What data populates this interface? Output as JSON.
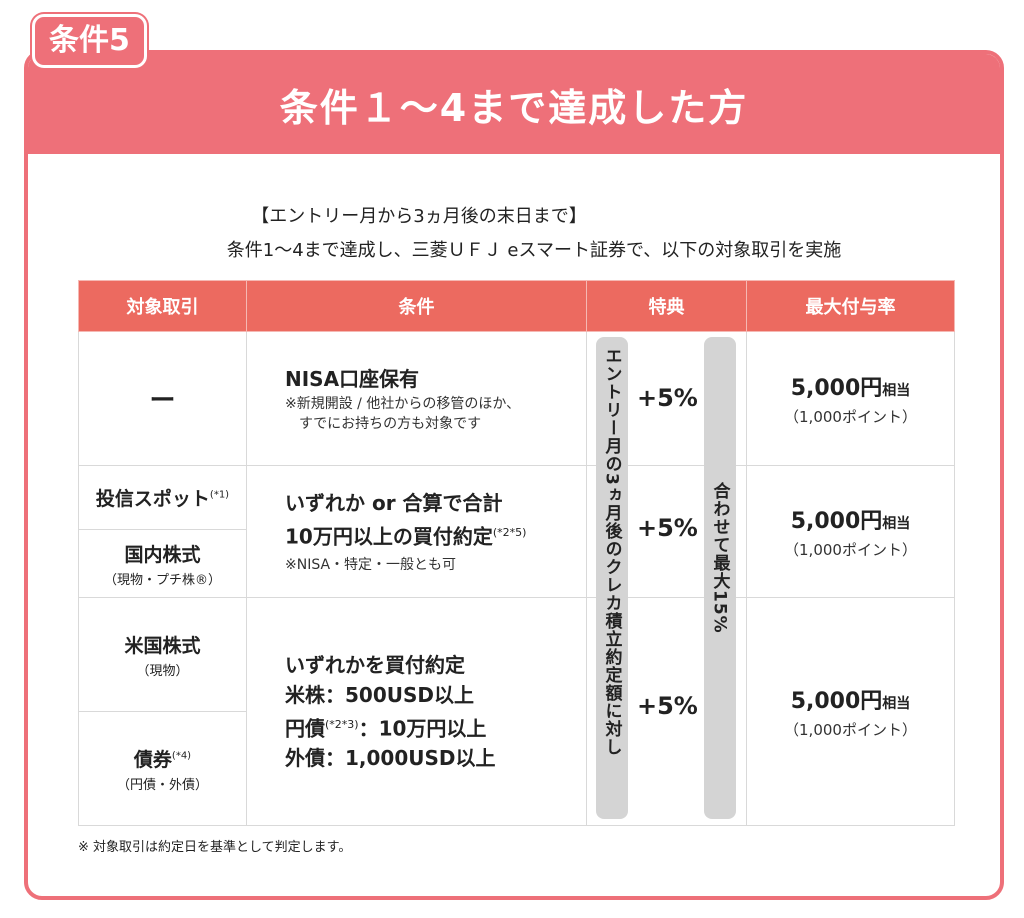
{
  "tab_label": "条件5",
  "title": "条件１〜4まで達成した方",
  "intro": {
    "period": "【エントリー月から3ヵ月後の末日まで】",
    "description": "条件1〜4まで達成し、三菱ＵＦＪ eスマート証券で、以下の対象取引を実施"
  },
  "table": {
    "headers": [
      "対象取引",
      "条件",
      "特典",
      "最大付与率"
    ],
    "rows": [
      {
        "target": "ー",
        "condition_main": "NISA口座保有",
        "condition_note1": "※新規開設 / 他社からの移管のほか、",
        "condition_note2": "すでにお持ちの方も対象です",
        "benefit": "+5%",
        "amount": "5,000円",
        "amount_unit": "相当",
        "points": "（1,000ポイント）"
      },
      {
        "target1": "投信スポット",
        "target1_sup": "(*1)",
        "target2": "国内株式",
        "target2_sub": "（現物・プチ株®）",
        "condition_line1": "いずれか or 合算で合計",
        "condition_line2": "10万円以上の買付約定",
        "condition_sup": "(*2*5)",
        "condition_note": "※NISA・特定・一般とも可",
        "benefit": "+5%",
        "amount": "5,000円",
        "amount_unit": "相当",
        "points": "（1,000ポイント）"
      },
      {
        "target1": "米国株式",
        "target1_sub": "（現物）",
        "target2": "債券",
        "target2_sup": "(*4)",
        "target2_sub": "（円債・外債）",
        "condition_line1": "いずれかを買付約定",
        "condition_line2": "米株：500USD以上",
        "condition_line3a": "円債",
        "condition_line3_sup": "(*2*3)",
        "condition_line3b": "：10万円以上",
        "condition_line4": "外債：1,000USD以上",
        "benefit": "+5%",
        "amount": "5,000円",
        "amount_unit": "相当",
        "points": "（1,000ポイント）"
      }
    ],
    "vertical_left": "エントリー月の3ヵ月後のクレカ積立約定額に対し",
    "vertical_right": "合わせて最大15%"
  },
  "footnote": "※ 対象取引は約定日を基準として判定します。"
}
